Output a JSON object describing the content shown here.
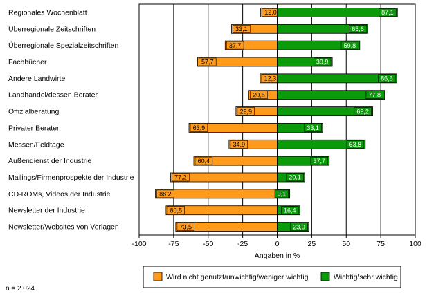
{
  "chart_data": {
    "type": "bar",
    "orientation": "horizontal",
    "categories": [
      "Regionales Wochenblatt",
      "Überregionale Zeitschriften",
      "Überregionale Spezialzeitschriften",
      "Fachbücher",
      "Andere Landwirte",
      "Landhandel/dessen Berater",
      "Offizialberatung",
      "Privater Berater",
      "Messen/Feldtage",
      "Außendienst der Industrie",
      "Mailings/Firmenprospekte der Industrie",
      "CD-ROMs, Videos der Industrie",
      "Newsletter der Industrie",
      "Newsletter/Websites von Verlagen"
    ],
    "series": [
      {
        "name": "Wird nicht genutzt/unwichtig/weniger wichtig",
        "color": "#FF9A1A",
        "values": [
          -12.0,
          -33.1,
          -37.7,
          -57.7,
          -12.3,
          -20.5,
          -29.9,
          -63.9,
          -34.9,
          -60.4,
          -77.2,
          -88.2,
          -80.5,
          -73.5
        ],
        "labels": [
          "12,0",
          "33,1",
          "37,7",
          "57,7",
          "12,3",
          "20,5",
          "29,9",
          "63,9",
          "34,9",
          "60,4",
          "77,2",
          "88,2",
          "80,5",
          "73,5"
        ]
      },
      {
        "name": "Wichtig/sehr wichtig",
        "color": "#0A9A0A",
        "values": [
          87.1,
          65.6,
          59.8,
          39.9,
          86.6,
          77.8,
          69.2,
          33.1,
          63.8,
          37.7,
          20.1,
          9.1,
          16.4,
          23.0
        ],
        "labels": [
          "87,1",
          "65,6",
          "59,8",
          "39,9",
          "86,6",
          "77,8",
          "69,2",
          "33,1",
          "63,8",
          "37,7",
          "20,1",
          "9,1",
          "16,4",
          "23,0"
        ]
      }
    ],
    "xlim": [
      -100,
      100
    ],
    "xticks": [
      "-100",
      "-75",
      "-50",
      "-25",
      "0",
      "25",
      "50",
      "75",
      "100"
    ],
    "xlabel": "Angaben in %",
    "grid": true,
    "legend_position": "bottom"
  },
  "note": "n = 2.024"
}
